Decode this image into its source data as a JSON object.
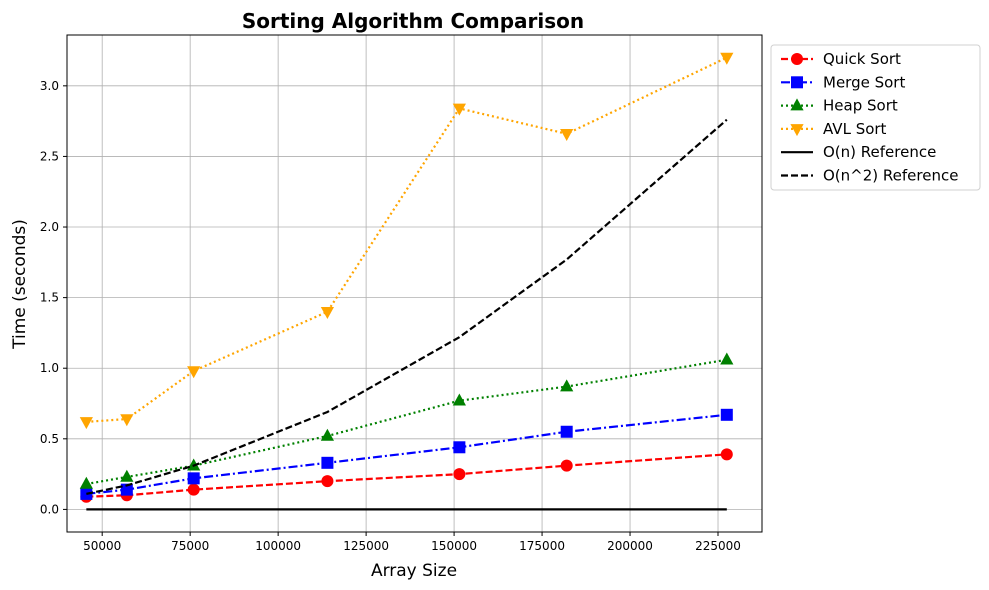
{
  "chart_data": {
    "type": "line",
    "title": "Sorting Algorithm Comparison",
    "xlabel": "Array Size",
    "ylabel": "Time (seconds)",
    "xlim": [
      40000,
      237500
    ],
    "ylim": [
      -0.16,
      3.36
    ],
    "x_ticks": [
      50000,
      75000,
      100000,
      125000,
      150000,
      175000,
      200000,
      225000
    ],
    "y_ticks": [
      0.0,
      0.5,
      1.0,
      1.5,
      2.0,
      2.5,
      3.0
    ],
    "grid": true,
    "legend_position": "outside-top-right",
    "x": [
      45500,
      57000,
      76000,
      114000,
      151500,
      182000,
      227500
    ],
    "series": [
      {
        "name": "Quick Sort",
        "color": "#ff0000",
        "line_style": "dashed",
        "marker": "circle",
        "values": [
          0.09,
          0.1,
          0.14,
          0.2,
          0.25,
          0.31,
          0.39
        ]
      },
      {
        "name": "Merge Sort",
        "color": "#0000ff",
        "line_style": "dashdot",
        "marker": "square",
        "values": [
          0.11,
          0.14,
          0.22,
          0.33,
          0.44,
          0.55,
          0.67
        ]
      },
      {
        "name": "Heap Sort",
        "color": "#008000",
        "line_style": "dotted",
        "marker": "triangle-up",
        "values": [
          0.18,
          0.23,
          0.31,
          0.52,
          0.77,
          0.87,
          1.06
        ]
      },
      {
        "name": "AVL Sort",
        "color": "#ffa500",
        "line_style": "dotted",
        "marker": "triangle-down",
        "values": [
          0.62,
          0.64,
          0.98,
          1.4,
          2.84,
          2.66,
          3.2
        ]
      },
      {
        "name": "O(n) Reference",
        "color": "#000000",
        "line_style": "solid",
        "marker": "none",
        "values": [
          0.0,
          0.0,
          0.0,
          0.0,
          0.0,
          0.0,
          0.0
        ]
      },
      {
        "name": "O(n^2) Reference",
        "color": "#000000",
        "line_style": "dashed",
        "marker": "none",
        "values": [
          0.11,
          0.17,
          0.31,
          0.69,
          1.22,
          1.77,
          2.76
        ]
      }
    ]
  }
}
